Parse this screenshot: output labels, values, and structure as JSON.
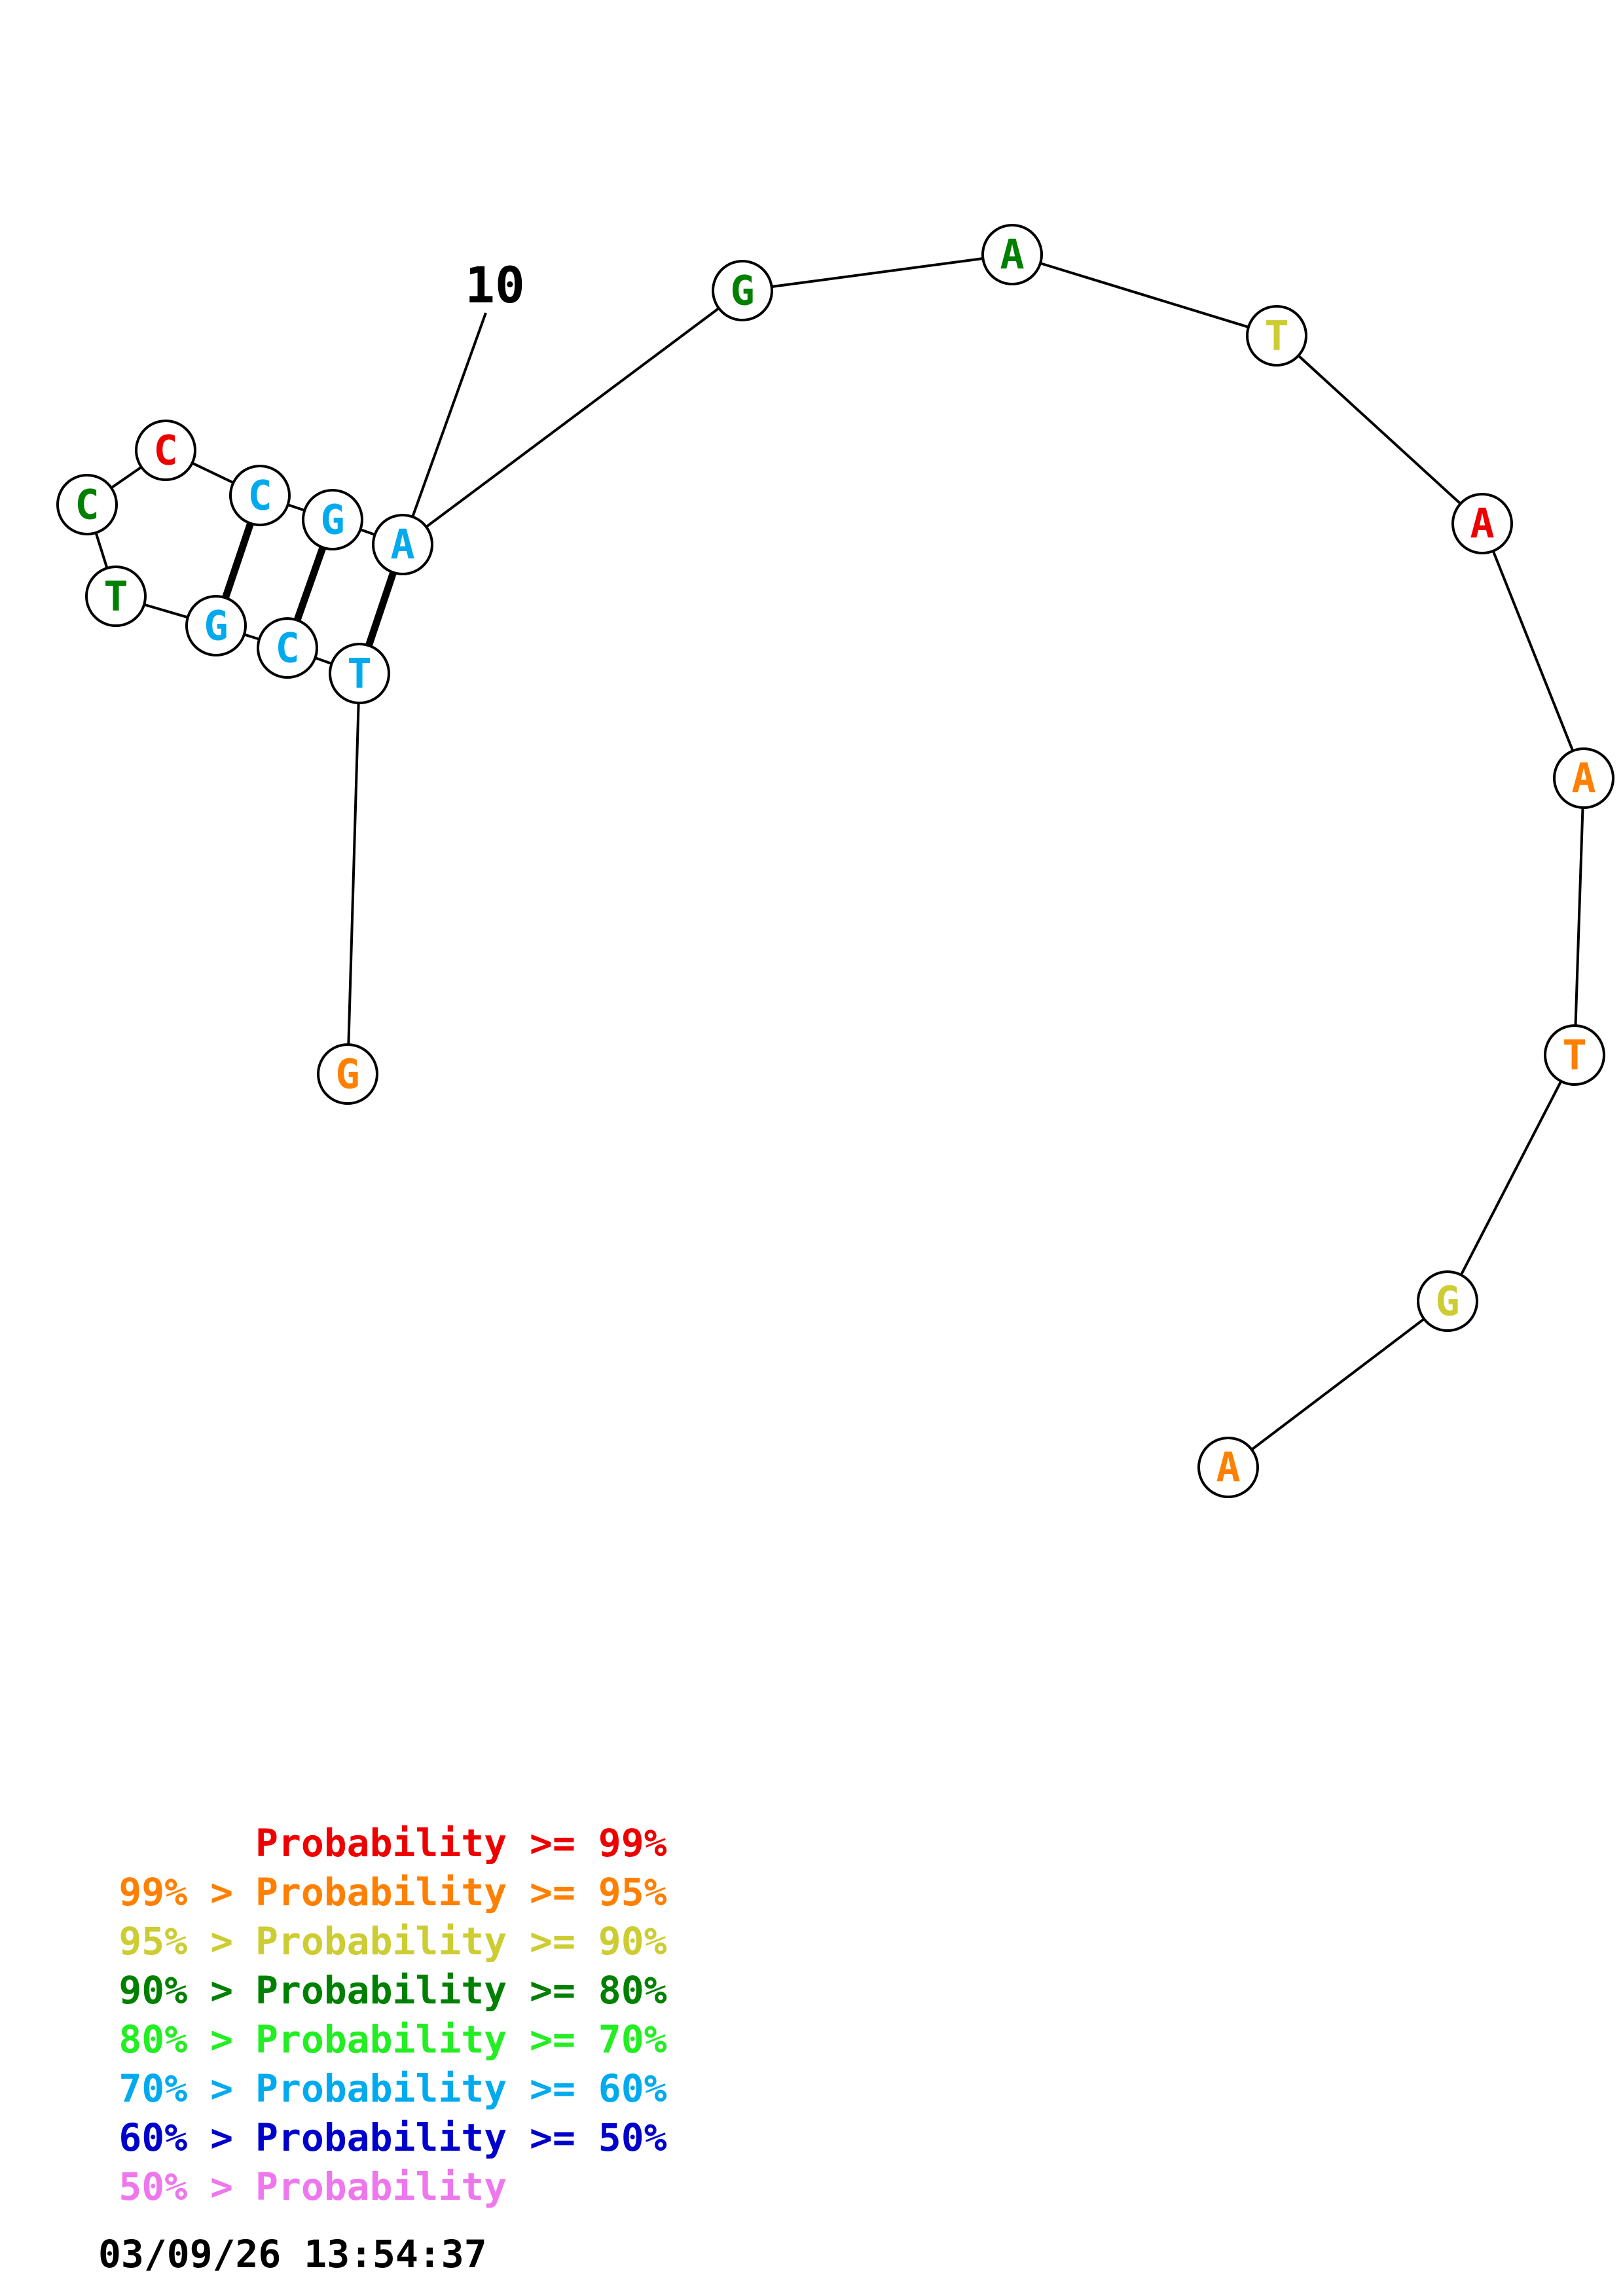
{
  "index_label": "10",
  "nucleotides": [
    {
      "base": "G",
      "color": "#ff8000"
    },
    {
      "base": "T",
      "color": "#00aaee"
    },
    {
      "base": "C",
      "color": "#00aaee"
    },
    {
      "base": "G",
      "color": "#00aaee"
    },
    {
      "base": "T",
      "color": "#008000"
    },
    {
      "base": "C",
      "color": "#008000"
    },
    {
      "base": "C",
      "color": "#ee0000"
    },
    {
      "base": "C",
      "color": "#00aaee"
    },
    {
      "base": "G",
      "color": "#00aaee"
    },
    {
      "base": "A",
      "color": "#00aaee"
    },
    {
      "base": "G",
      "color": "#008000"
    },
    {
      "base": "A",
      "color": "#008000"
    },
    {
      "base": "T",
      "color": "#cccc33"
    },
    {
      "base": "A",
      "color": "#ee0000"
    },
    {
      "base": "A",
      "color": "#ff8000"
    },
    {
      "base": "T",
      "color": "#ff8000"
    },
    {
      "base": "G",
      "color": "#cccc33"
    },
    {
      "base": "A",
      "color": "#ff8000"
    }
  ],
  "base_pairs": [
    [
      2,
      10
    ],
    [
      3,
      9
    ],
    [
      4,
      8
    ]
  ],
  "legend": [
    {
      "left": "",
      "right": "Probability >= 99%",
      "color": "#ee0000"
    },
    {
      "left": "99% >",
      "right": "Probability >= 95%",
      "color": "#ff8000"
    },
    {
      "left": "95% >",
      "right": "Probability >= 90%",
      "color": "#cccc33"
    },
    {
      "left": "90% >",
      "right": "Probability >= 80%",
      "color": "#008000"
    },
    {
      "left": "80% >",
      "right": "Probability >= 70%",
      "color": "#22ee22"
    },
    {
      "left": "70% >",
      "right": "Probability >= 60%",
      "color": "#00aaee"
    },
    {
      "left": "60% >",
      "right": "Probability >= 50%",
      "color": "#0000cc"
    },
    {
      "left": "50% >",
      "right": "Probability",
      "color": "#ee77ee"
    }
  ],
  "timestamp": "03/09/26 13:54:37"
}
